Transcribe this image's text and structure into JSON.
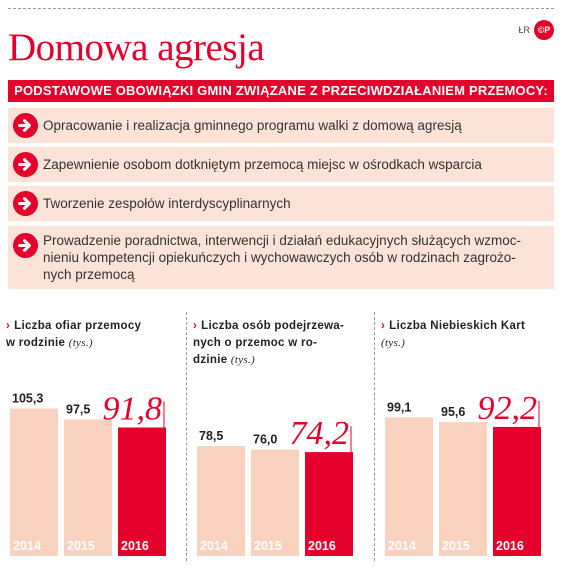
{
  "credit": "ŁR",
  "logo": "©P",
  "title": "Domowa agresja",
  "banner": "PODSTAWOWE OBOWIĄZKI GMIN ZWIĄZANE Z PRZECIWDZIAŁANIEM PRZEMOCY:",
  "duties": [
    "Opracowanie i realizacja gminnego programu walki z domową agresją",
    "Zapewnienie osobom dotkniętym przemocą miejsc w ośrodkach wsparcia",
    "Tworzenie zespołów interdyscyplinarnych",
    "Prowadzenie poradnictwa, interwencji i działań edukacyjnych służących wzmoc-\nnieniu kompetencji opiekuńczych i wychowawczych osób w rodzinach zagrożo-\nnych przemocą"
  ],
  "colors": {
    "accent": "#e4002b",
    "light": "#fce3d7",
    "bar_light": "#f8d2bf"
  },
  "chart_data": [
    {
      "type": "bar",
      "title": "Liczba ofiar przemocy\nw rodzinie",
      "unit": "(tys.)",
      "categories": [
        "2014",
        "2015",
        "2016"
      ],
      "values": [
        105.3,
        97.5,
        91.8
      ],
      "labels": [
        "105,3",
        "97,5",
        "91,8"
      ]
    },
    {
      "type": "bar",
      "title": "Liczba osób podejrzewa-\nnych o przemoc w ro-\ndzinie",
      "unit": "(tys.)",
      "categories": [
        "2014",
        "2015",
        "2016"
      ],
      "values": [
        78.5,
        76.0,
        74.2
      ],
      "labels": [
        "78,5",
        "76,0",
        "74,2"
      ]
    },
    {
      "type": "bar",
      "title": "Liczba Niebieskich Kart",
      "unit": "(tys.)",
      "categories": [
        "2014",
        "2015",
        "2016"
      ],
      "values": [
        99.1,
        95.6,
        92.2
      ],
      "labels": [
        "99,1",
        "95,6",
        "92,2"
      ]
    }
  ]
}
